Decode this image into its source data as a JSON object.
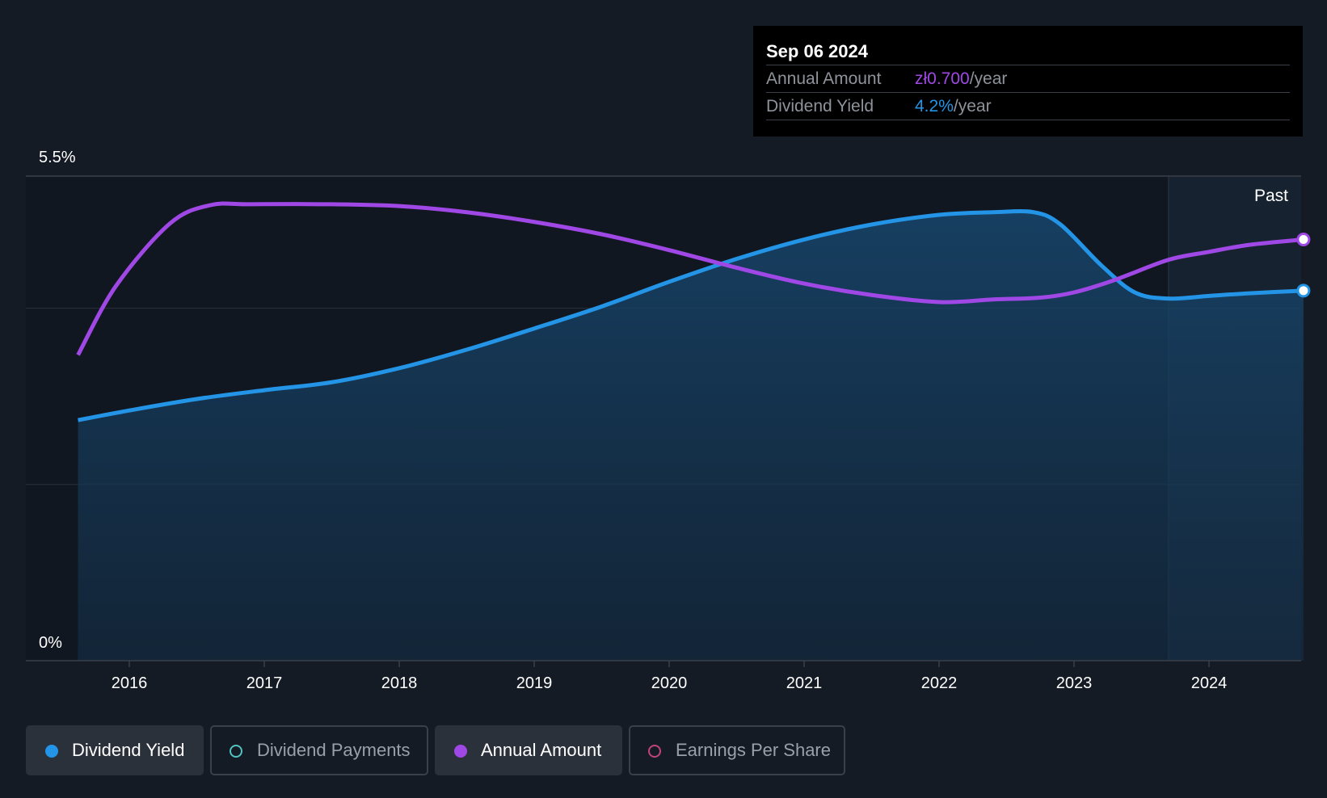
{
  "chart_data": {
    "type": "line",
    "x_ticks": [
      "2016",
      "2017",
      "2018",
      "2019",
      "2020",
      "2021",
      "2022",
      "2023",
      "2024"
    ],
    "y_tick_labels": [
      "5.5%",
      "0%"
    ],
    "ylim": [
      0,
      5.5
    ],
    "xlim": [
      2015.62,
      2024.7
    ],
    "past_region_start": 2023.7,
    "past_label": "Past",
    "series": [
      {
        "name": "Dividend Yield",
        "color": "#2394e6",
        "area": true,
        "x": [
          2015.62,
          2016.0,
          2016.5,
          2017.0,
          2017.5,
          2018.0,
          2018.5,
          2019.0,
          2019.5,
          2020.0,
          2020.5,
          2021.0,
          2021.5,
          2022.0,
          2022.4,
          2022.7,
          2022.9,
          2023.2,
          2023.45,
          2023.7,
          2024.0,
          2024.3,
          2024.7
        ],
        "values": [
          2.73,
          2.84,
          2.97,
          3.07,
          3.16,
          3.32,
          3.53,
          3.77,
          4.02,
          4.3,
          4.56,
          4.78,
          4.95,
          5.06,
          5.09,
          5.09,
          4.95,
          4.49,
          4.18,
          4.11,
          4.14,
          4.17,
          4.2
        ]
      },
      {
        "name": "Annual Amount",
        "color": "#a048e6",
        "area": false,
        "x": [
          2015.62,
          2015.9,
          2016.3,
          2016.6,
          2016.9,
          2017.5,
          2018.0,
          2018.5,
          2019.0,
          2019.5,
          2020.0,
          2020.5,
          2021.0,
          2021.5,
          2022.0,
          2022.4,
          2022.75,
          2023.0,
          2023.3,
          2023.7,
          2024.0,
          2024.3,
          2024.7
        ],
        "values": [
          3.47,
          4.25,
          4.96,
          5.17,
          5.18,
          5.18,
          5.16,
          5.09,
          4.98,
          4.84,
          4.66,
          4.46,
          4.28,
          4.15,
          4.07,
          4.1,
          4.12,
          4.18,
          4.32,
          4.55,
          4.64,
          4.72,
          4.78
        ]
      }
    ]
  },
  "tooltip": {
    "date": "Sep 06 2024",
    "rows": [
      {
        "label": "Annual Amount",
        "value": "zł0.700",
        "unit": "/year",
        "color": "#a048e6"
      },
      {
        "label": "Dividend Yield",
        "value": "4.2%",
        "unit": "/year",
        "color": "#2394e6"
      }
    ]
  },
  "legend": [
    {
      "label": "Dividend Yield",
      "active": true,
      "color": "#2394e6"
    },
    {
      "label": "Dividend Payments",
      "active": false,
      "color": "#4fc4c0"
    },
    {
      "label": "Annual Amount",
      "active": true,
      "color": "#a048e6"
    },
    {
      "label": "Earnings Per Share",
      "active": false,
      "color": "#c2427c"
    }
  ]
}
